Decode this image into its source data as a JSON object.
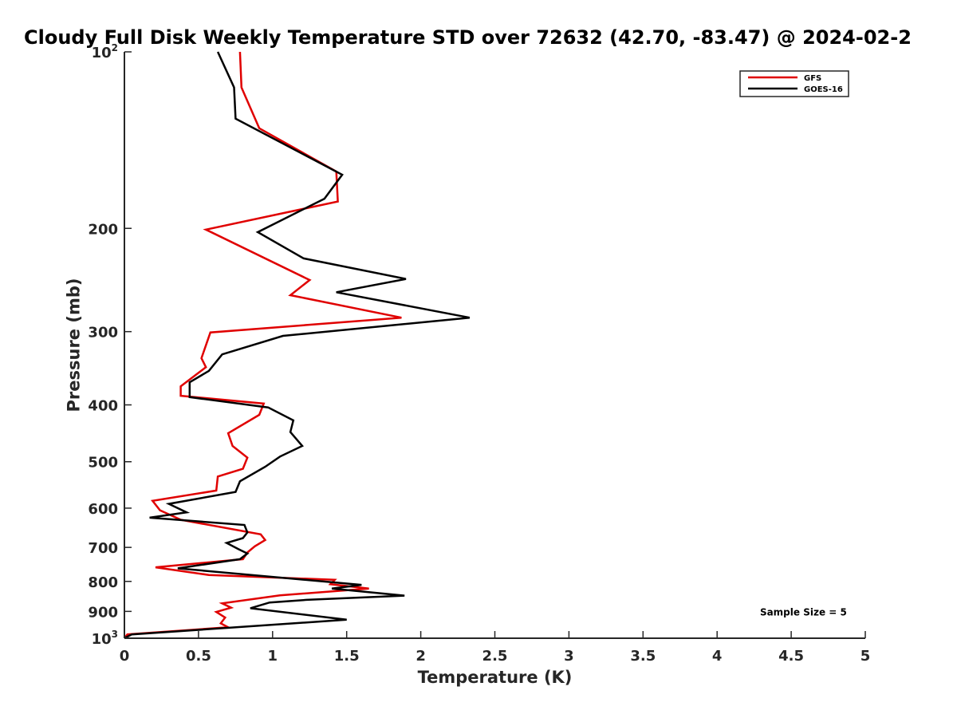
{
  "chart_data": {
    "type": "line",
    "title": "Cloudy Full Disk Weekly Temperature STD over 72632 (42.70, -83.47) @ 2024-02-2",
    "xlabel": "Temperature (K)",
    "ylabel": "Pressure (mb)",
    "xlim": [
      0,
      5
    ],
    "ylim": [
      100,
      1000
    ],
    "y_scale": "log",
    "y_reversed": true,
    "x_ticks": [
      "0",
      "0.5",
      "1",
      "1.5",
      "2",
      "2.5",
      "3",
      "3.5",
      "4",
      "4.5",
      "5"
    ],
    "y_ticks": [
      {
        "value": 100,
        "base": "10",
        "exp": "2"
      },
      {
        "value": 200,
        "label": "200"
      },
      {
        "value": 300,
        "label": "300"
      },
      {
        "value": 400,
        "label": "400"
      },
      {
        "value": 500,
        "label": "500"
      },
      {
        "value": 600,
        "label": "600"
      },
      {
        "value": 700,
        "label": "700"
      },
      {
        "value": 800,
        "label": "800"
      },
      {
        "value": 900,
        "label": "900"
      },
      {
        "value": 1000,
        "base": "10",
        "exp": "3"
      }
    ],
    "grid": false,
    "legend_position": "top-right",
    "series": [
      {
        "name": "GFS",
        "color": "#e00000",
        "points": [
          [
            0.78,
            100
          ],
          [
            0.79,
            115
          ],
          [
            0.91,
            135
          ],
          [
            1.43,
            160
          ],
          [
            1.44,
            180
          ],
          [
            0.55,
            201
          ],
          [
            1.25,
            245
          ],
          [
            1.12,
            260
          ],
          [
            1.87,
            284
          ],
          [
            0.58,
            301
          ],
          [
            0.52,
            333
          ],
          [
            0.55,
            345
          ],
          [
            0.38,
            372
          ],
          [
            0.38,
            386
          ],
          [
            0.94,
            398
          ],
          [
            0.91,
            416
          ],
          [
            0.7,
            447
          ],
          [
            0.73,
            470
          ],
          [
            0.83,
            492
          ],
          [
            0.8,
            514
          ],
          [
            0.63,
            530
          ],
          [
            0.62,
            560
          ],
          [
            0.19,
            583
          ],
          [
            0.24,
            605
          ],
          [
            0.38,
            628
          ],
          [
            0.92,
            665
          ],
          [
            0.95,
            680
          ],
          [
            0.88,
            697
          ],
          [
            0.83,
            714
          ],
          [
            0.8,
            733
          ],
          [
            0.21,
            757
          ],
          [
            0.57,
            780
          ],
          [
            1.42,
            795
          ],
          [
            1.39,
            809
          ],
          [
            1.65,
            823
          ],
          [
            1.05,
            845
          ],
          [
            0.66,
            872
          ],
          [
            0.72,
            887
          ],
          [
            0.62,
            902
          ],
          [
            0.68,
            922
          ],
          [
            0.65,
            943
          ],
          [
            0.7,
            958
          ],
          [
            0.02,
            985
          ],
          [
            0.0,
            1000
          ]
        ]
      },
      {
        "name": "GOES-16",
        "color": "#000000",
        "points": [
          [
            0.63,
            100
          ],
          [
            0.74,
            115
          ],
          [
            0.75,
            130
          ],
          [
            1.47,
            162
          ],
          [
            1.35,
            178
          ],
          [
            0.9,
            203
          ],
          [
            1.21,
            225
          ],
          [
            1.9,
            244
          ],
          [
            1.43,
            257
          ],
          [
            2.33,
            284
          ],
          [
            1.07,
            305
          ],
          [
            0.66,
            328
          ],
          [
            0.57,
            350
          ],
          [
            0.44,
            366
          ],
          [
            0.44,
            388
          ],
          [
            0.97,
            404
          ],
          [
            1.14,
            425
          ],
          [
            1.12,
            445
          ],
          [
            1.2,
            470
          ],
          [
            1.05,
            490
          ],
          [
            0.95,
            510
          ],
          [
            0.78,
            540
          ],
          [
            0.75,
            563
          ],
          [
            0.3,
            590
          ],
          [
            0.42,
            610
          ],
          [
            0.17,
            623
          ],
          [
            0.81,
            641
          ],
          [
            0.83,
            660
          ],
          [
            0.8,
            675
          ],
          [
            0.69,
            688
          ],
          [
            0.77,
            705
          ],
          [
            0.83,
            717
          ],
          [
            0.78,
            733
          ],
          [
            0.36,
            760
          ],
          [
            1.6,
            811
          ],
          [
            1.4,
            823
          ],
          [
            1.89,
            846
          ],
          [
            1.23,
            860
          ],
          [
            0.98,
            869
          ],
          [
            0.85,
            889
          ],
          [
            1.5,
            930
          ],
          [
            0.05,
            985
          ],
          [
            0.0,
            1000
          ]
        ]
      }
    ],
    "annotations": [
      {
        "text": "Sample Size = 5",
        "x": 4.3,
        "y": 900
      }
    ]
  }
}
